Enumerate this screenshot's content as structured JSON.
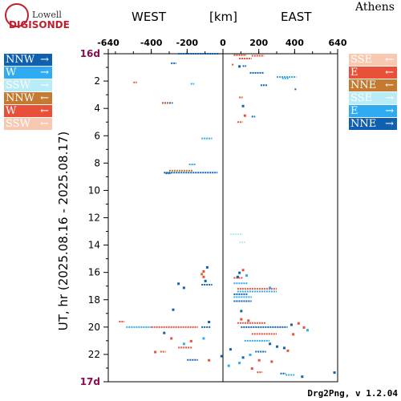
{
  "logo": {
    "name_top": "Lowell",
    "name_bottom": "DIGISONDE"
  },
  "station": "Athens",
  "header": {
    "west": "WEST",
    "unit": "[km]",
    "east": "EAST"
  },
  "legend_left": [
    {
      "label": "NNW",
      "arrow": "→",
      "color": "#1060b0"
    },
    {
      "label": "W",
      "arrow": "→",
      "color": "#30aaf0"
    },
    {
      "label": "SSW",
      "arrow": "→",
      "color": "#b8ecf6"
    },
    {
      "label": "NNW",
      "arrow": "←",
      "color": "#c47a30"
    },
    {
      "label": "W",
      "arrow": "←",
      "color": "#e8503a"
    },
    {
      "label": "SSW",
      "arrow": "←",
      "color": "#f8c8b0"
    }
  ],
  "legend_right": [
    {
      "label": "SSE",
      "arrow": "←",
      "color": "#f8c8b0"
    },
    {
      "label": "E",
      "arrow": "←",
      "color": "#e8503a"
    },
    {
      "label": "NNE",
      "arrow": "←",
      "color": "#c47a30"
    },
    {
      "label": "SSE",
      "arrow": "→",
      "color": "#b8ecf6"
    },
    {
      "label": "E",
      "arrow": "→",
      "color": "#30aaf0"
    },
    {
      "label": "NNE",
      "arrow": "→",
      "color": "#1060b0"
    }
  ],
  "footer": "Drg2Png, v 1.2.04",
  "chart_data": {
    "type": "scatter",
    "ylabel": "UT, hr (2025.08.16 - 2025.08.17)",
    "xlim": [
      -640,
      640
    ],
    "ylim": [
      0,
      24
    ],
    "x_ticks": [
      -640,
      -400,
      -200,
      0,
      200,
      400,
      640
    ],
    "y_ticks": [
      {
        "value": 0,
        "label": "16d"
      },
      {
        "value": 2,
        "label": "2"
      },
      {
        "value": 4,
        "label": "4"
      },
      {
        "value": 6,
        "label": "6"
      },
      {
        "value": 8,
        "label": "8"
      },
      {
        "value": 10,
        "label": "10"
      },
      {
        "value": 12,
        "label": "12"
      },
      {
        "value": 14,
        "label": "14"
      },
      {
        "value": 16,
        "label": "16"
      },
      {
        "value": 18,
        "label": "18"
      },
      {
        "value": 20,
        "label": "20"
      },
      {
        "value": 22,
        "label": "22"
      },
      {
        "value": 24,
        "label": "17d"
      }
    ],
    "day_label_color": "#8b0a50",
    "segments": [
      {
        "x0": -250,
        "x1": -20,
        "t": 0.0,
        "color": "#1060b0"
      },
      {
        "x0": 60,
        "x1": 130,
        "t": 0.1,
        "color": "#e8503a"
      },
      {
        "x0": 160,
        "x1": 230,
        "t": 0.15,
        "color": "#e8503a"
      },
      {
        "x0": 90,
        "x1": 160,
        "t": 0.35,
        "color": "#e8503a"
      },
      {
        "x0": -290,
        "x1": -260,
        "t": 0.7,
        "color": "#1060b0"
      },
      {
        "x0": 50,
        "x1": 60,
        "t": 0.8,
        "color": "#e8503a"
      },
      {
        "x0": 110,
        "x1": 130,
        "t": 0.9,
        "color": "#1060b0"
      },
      {
        "x0": 150,
        "x1": 230,
        "t": 1.4,
        "color": "#1060b0"
      },
      {
        "x0": 300,
        "x1": 410,
        "t": 1.7,
        "color": "#30aaf0"
      },
      {
        "x0": 330,
        "x1": 370,
        "t": 1.8,
        "color": "#30aaf0"
      },
      {
        "x0": -500,
        "x1": -480,
        "t": 2.1,
        "color": "#e8503a"
      },
      {
        "x0": -180,
        "x1": -160,
        "t": 2.2,
        "color": "#30aaf0"
      },
      {
        "x0": 210,
        "x1": 250,
        "t": 2.3,
        "color": "#1060b0"
      },
      {
        "x0": 400,
        "x1": 410,
        "t": 2.6,
        "color": "#1060b0"
      },
      {
        "x0": 90,
        "x1": 110,
        "t": 3.2,
        "color": "#e8503a"
      },
      {
        "x0": -340,
        "x1": -280,
        "t": 3.6,
        "color": "#1060b0"
      },
      {
        "x0": -340,
        "x1": -300,
        "t": 3.6,
        "color": "#e8503a"
      },
      {
        "x0": 160,
        "x1": 180,
        "t": 4.6,
        "color": "#1060b0"
      },
      {
        "x0": 80,
        "x1": 110,
        "t": 5.0,
        "color": "#e8503a"
      },
      {
        "x0": -120,
        "x1": -60,
        "t": 6.2,
        "color": "#30aaf0"
      },
      {
        "x0": -330,
        "x1": -30,
        "t": 8.7,
        "color": "#1060b0"
      },
      {
        "x0": -300,
        "x1": -170,
        "t": 8.55,
        "color": "#c47a30"
      },
      {
        "x0": -320,
        "x1": -290,
        "t": 8.75,
        "color": "#1060b0"
      },
      {
        "x0": -190,
        "x1": -150,
        "t": 8.1,
        "color": "#30aaf0"
      },
      {
        "x0": 40,
        "x1": 110,
        "t": 13.2,
        "color": "#b8ecf6"
      },
      {
        "x0": 90,
        "x1": 130,
        "t": 13.8,
        "color": "#b8ecf6"
      },
      {
        "x0": 60,
        "x1": 110,
        "t": 16.4,
        "color": "#e8503a"
      },
      {
        "x0": -120,
        "x1": -60,
        "t": 16.9,
        "color": "#1060b0"
      },
      {
        "x0": 60,
        "x1": 140,
        "t": 16.8,
        "color": "#30aaf0"
      },
      {
        "x0": 80,
        "x1": 300,
        "t": 17.2,
        "color": "#e8503a"
      },
      {
        "x0": 80,
        "x1": 300,
        "t": 17.4,
        "color": "#30aaf0"
      },
      {
        "x0": 60,
        "x1": 140,
        "t": 17.6,
        "color": "#1060b0"
      },
      {
        "x0": 60,
        "x1": 160,
        "t": 17.8,
        "color": "#30aaf0"
      },
      {
        "x0": 60,
        "x1": 160,
        "t": 18.1,
        "color": "#1060b0"
      },
      {
        "x0": -580,
        "x1": -550,
        "t": 19.6,
        "color": "#e8503a"
      },
      {
        "x0": 80,
        "x1": 240,
        "t": 19.7,
        "color": "#e8503a"
      },
      {
        "x0": -540,
        "x1": -400,
        "t": 20.0,
        "color": "#30aaf0"
      },
      {
        "x0": -400,
        "x1": -140,
        "t": 20.0,
        "color": "#e8503a"
      },
      {
        "x0": -120,
        "x1": -70,
        "t": 20.0,
        "color": "#1060b0"
      },
      {
        "x0": 100,
        "x1": 360,
        "t": 20.0,
        "color": "#1060b0"
      },
      {
        "x0": 160,
        "x1": 300,
        "t": 20.5,
        "color": "#e8503a"
      },
      {
        "x0": 120,
        "x1": 260,
        "t": 21.0,
        "color": "#30aaf0"
      },
      {
        "x0": -250,
        "x1": -170,
        "t": 21.5,
        "color": "#e8503a"
      },
      {
        "x0": -350,
        "x1": -320,
        "t": 21.8,
        "color": "#e8503a"
      },
      {
        "x0": 180,
        "x1": 240,
        "t": 21.8,
        "color": "#1060b0"
      },
      {
        "x0": -200,
        "x1": -140,
        "t": 22.4,
        "color": "#1060b0"
      },
      {
        "x0": 320,
        "x1": 350,
        "t": 23.4,
        "color": "#1060b0"
      },
      {
        "x0": 350,
        "x1": 400,
        "t": 23.5,
        "color": "#30aaf0"
      },
      {
        "x0": 190,
        "x1": 220,
        "t": 23.3,
        "color": "#e8503a"
      }
    ],
    "points": [
      {
        "x": 90,
        "t": 0.9,
        "color": "#1060b0"
      },
      {
        "x": 120,
        "t": 4.5,
        "color": "#e8503a"
      },
      {
        "x": 110,
        "t": 3.8,
        "color": "#1060b0"
      },
      {
        "x": -110,
        "t": 16.3,
        "color": "#e8503a"
      },
      {
        "x": -120,
        "t": 16.1,
        "color": "#c47a30"
      },
      {
        "x": -110,
        "t": 15.9,
        "color": "#e8503a"
      },
      {
        "x": -90,
        "t": 15.6,
        "color": "#1060b0"
      },
      {
        "x": -100,
        "t": 16.6,
        "color": "#1060b0"
      },
      {
        "x": -220,
        "t": 17.1,
        "color": "#1060b0"
      },
      {
        "x": -250,
        "t": 16.8,
        "color": "#1060b0"
      },
      {
        "x": 90,
        "t": 16.0,
        "color": "#1060b0"
      },
      {
        "x": 110,
        "t": 15.8,
        "color": "#e8503a"
      },
      {
        "x": 80,
        "t": 16.3,
        "color": "#1060b0"
      },
      {
        "x": 130,
        "t": 16.2,
        "color": "#30aaf0"
      },
      {
        "x": 260,
        "t": 17.1,
        "color": "#30aaf0"
      },
      {
        "x": 100,
        "t": 18.8,
        "color": "#1060b0"
      },
      {
        "x": -280,
        "t": 18.7,
        "color": "#1060b0"
      },
      {
        "x": 100,
        "t": 19.4,
        "color": "#e8503a"
      },
      {
        "x": 140,
        "t": 19.5,
        "color": "#e8503a"
      },
      {
        "x": -80,
        "t": 19.6,
        "color": "#1060b0"
      },
      {
        "x": 420,
        "t": 19.7,
        "color": "#e8503a"
      },
      {
        "x": 470,
        "t": 20.2,
        "color": "#30aaf0"
      },
      {
        "x": 450,
        "t": 20.0,
        "color": "#e8503a"
      },
      {
        "x": 380,
        "t": 19.8,
        "color": "#1060b0"
      },
      {
        "x": 390,
        "t": 20.5,
        "color": "#e8503a"
      },
      {
        "x": -330,
        "t": 20.4,
        "color": "#1060b0"
      },
      {
        "x": -290,
        "t": 20.8,
        "color": "#e8503a"
      },
      {
        "x": -220,
        "t": 21.2,
        "color": "#30aaf0"
      },
      {
        "x": -180,
        "t": 21.0,
        "color": "#e8503a"
      },
      {
        "x": -380,
        "t": 21.8,
        "color": "#e8503a"
      },
      {
        "x": -110,
        "t": 20.8,
        "color": "#30aaf0"
      },
      {
        "x": 260,
        "t": 21.2,
        "color": "#1060b0"
      },
      {
        "x": 300,
        "t": 21.4,
        "color": "#1060b0"
      },
      {
        "x": 340,
        "t": 21.5,
        "color": "#1060b0"
      },
      {
        "x": 360,
        "t": 21.7,
        "color": "#e8503a"
      },
      {
        "x": 200,
        "t": 22.4,
        "color": "#e8503a"
      },
      {
        "x": 150,
        "t": 22.0,
        "color": "#30aaf0"
      },
      {
        "x": 110,
        "t": 22.2,
        "color": "#1060b0"
      },
      {
        "x": 270,
        "t": 22.5,
        "color": "#e8503a"
      },
      {
        "x": 40,
        "t": 21.6,
        "color": "#1060b0"
      },
      {
        "x": -80,
        "t": 22.4,
        "color": "#e8503a"
      },
      {
        "x": -10,
        "t": 22.1,
        "color": "#1060b0"
      },
      {
        "x": 30,
        "t": 22.8,
        "color": "#30aaf0"
      },
      {
        "x": 160,
        "t": 23.0,
        "color": "#e8503a"
      },
      {
        "x": 440,
        "t": 23.6,
        "color": "#1060b0"
      },
      {
        "x": 620,
        "t": 23.3,
        "color": "#1060b0"
      },
      {
        "x": 90,
        "t": 22.6,
        "color": "#30aaf0"
      }
    ]
  }
}
